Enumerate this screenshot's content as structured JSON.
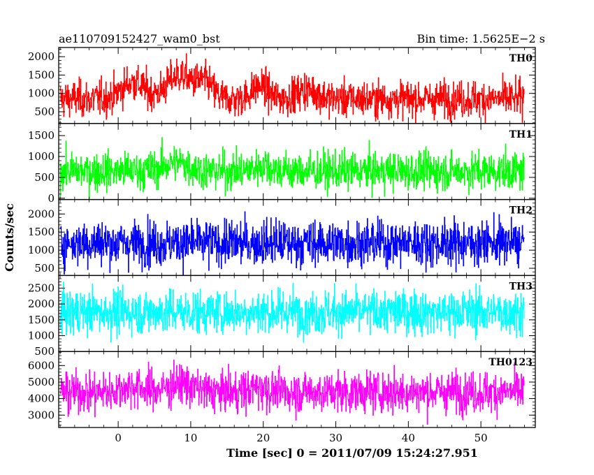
{
  "header": {
    "title": "ae110709152427_wam0_bst",
    "bin_time": "Bin time: 1.5625E−2 s"
  },
  "chart_data": {
    "type": "line",
    "style": "histogram-step light curve, 5 stacked panels sharing x axis",
    "xlabel": "Time [sec] 0 = 2011/07/09 15:24:27.951",
    "ylabel": "Counts/sec",
    "xlim": [
      -8.2,
      57.5
    ],
    "x_range_data": [
      -8.0,
      56.0
    ],
    "xticks": [
      0,
      10,
      20,
      30,
      40,
      50
    ],
    "x_tick_labels": [
      "0",
      "10",
      "20",
      "30",
      "40",
      "50"
    ],
    "panels": [
      {
        "name": "TH0",
        "color": "#ff0000",
        "ylim": [
          180,
          2250
        ],
        "yticks": [
          500,
          1000,
          1500,
          2000
        ],
        "y_tick_labels": [
          "500",
          "1000",
          "1500",
          "2000"
        ],
        "base": 850,
        "noise": 260,
        "bursts": [
          {
            "x": 2.0,
            "amp": 450,
            "w": 2.2
          },
          {
            "x": 8.5,
            "amp": 650,
            "w": 2.5
          },
          {
            "x": 12.0,
            "amp": 400,
            "w": 1.5
          },
          {
            "x": 19.5,
            "amp": 350,
            "w": 1.5
          },
          {
            "x": 26.0,
            "amp": 250,
            "w": 2.0
          }
        ]
      },
      {
        "name": "TH1",
        "color": "#00ff00",
        "ylim": [
          -30,
          1790
        ],
        "yticks": [
          0,
          500,
          1000,
          1500
        ],
        "y_tick_labels": [
          "0",
          "500",
          "1000",
          "1500"
        ],
        "base": 650,
        "noise": 240,
        "bursts": [
          {
            "x": 8.0,
            "amp": 200,
            "w": 2.5
          },
          {
            "x": 20.0,
            "amp": 150,
            "w": 1.5
          }
        ]
      },
      {
        "name": "TH2",
        "color": "#0000ff",
        "ylim": [
          300,
          2400
        ],
        "yticks": [
          500,
          1000,
          1500,
          2000
        ],
        "y_tick_labels": [
          "500",
          "1000",
          "1500",
          "2000"
        ],
        "base": 1200,
        "noise": 330,
        "bursts": []
      },
      {
        "name": "TH3",
        "color": "#00ffff",
        "ylim": [
          500,
          2900
        ],
        "yticks": [
          500,
          1000,
          1500,
          2000,
          2500
        ],
        "y_tick_labels": [
          "500",
          "1000",
          "1500",
          "2000",
          "2500"
        ],
        "base": 1750,
        "noise": 370,
        "bursts": []
      },
      {
        "name": "TH0123",
        "color": "#ff00ff",
        "ylim": [
          2250,
          6850
        ],
        "yticks": [
          3000,
          4000,
          5000,
          6000
        ],
        "y_tick_labels": [
          "3000",
          "4000",
          "5000",
          "6000"
        ],
        "base": 4400,
        "noise": 650,
        "bursts": [
          {
            "x": 2.0,
            "amp": 350,
            "w": 2.0
          },
          {
            "x": 8.5,
            "amp": 500,
            "w": 2.5
          },
          {
            "x": 19.5,
            "amp": 300,
            "w": 1.5
          }
        ]
      }
    ]
  }
}
